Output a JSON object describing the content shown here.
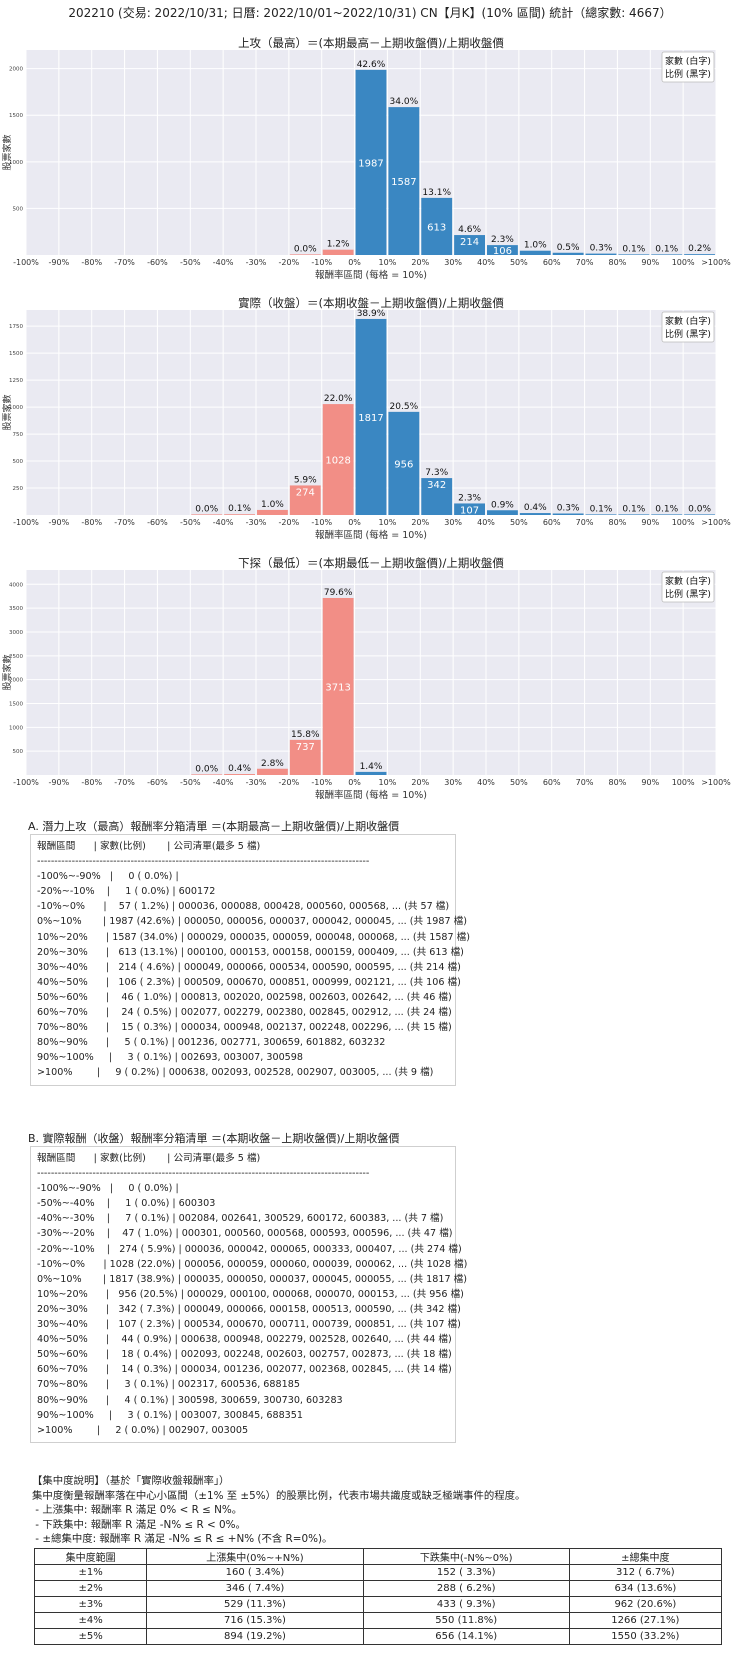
{
  "page_title": "202210 (交易: 2022/10/31; 日曆: 2022/10/01~2022/10/31) CN【月K】(10% 區間) 統計（總家數: 4667）",
  "chart_data": [
    {
      "type": "bar",
      "title": "上攻（最高）＝(本期最高－上期收盤價)/上期收盤價",
      "xlabel": "報酬率區間 (每格 = 10%)",
      "ylabel": "股票家數",
      "legend": [
        "家數 (白字)",
        "比例 (黑字)"
      ],
      "legend_position": "top-right",
      "grid": true,
      "ylim": [
        0,
        2200
      ],
      "yticks": [
        500,
        1000,
        1500,
        2000
      ],
      "xtick_labels": [
        "-100%",
        "-90%",
        "-80%",
        "-70%",
        "-60%",
        "-50%",
        "-40%",
        "-30%",
        "-20%",
        "-10%",
        "0%",
        "10%",
        "20%",
        "30%",
        "40%",
        "50%",
        "60%",
        "70%",
        "80%",
        "90%",
        "100%",
        ">100%"
      ],
      "bars": [
        {
          "bin": "-20%~-10%",
          "count": 1,
          "pct": "0.0%",
          "color": "#f28e86"
        },
        {
          "bin": "-10%~0%",
          "count": 57,
          "pct": "1.2%",
          "color": "#f28e86"
        },
        {
          "bin": "0%~10%",
          "count": 1987,
          "pct": "42.6%",
          "color": "#3a87c2"
        },
        {
          "bin": "10%~20%",
          "count": 1587,
          "pct": "34.0%",
          "color": "#3a87c2"
        },
        {
          "bin": "20%~30%",
          "count": 613,
          "pct": "13.1%",
          "color": "#3a87c2"
        },
        {
          "bin": "30%~40%",
          "count": 214,
          "pct": "4.6%",
          "color": "#3a87c2"
        },
        {
          "bin": "40%~50%",
          "count": 106,
          "pct": "2.3%",
          "color": "#3a87c2"
        },
        {
          "bin": "50%~60%",
          "count": 46,
          "pct": "1.0%",
          "color": "#3a87c2"
        },
        {
          "bin": "60%~70%",
          "count": 24,
          "pct": "0.5%",
          "color": "#3a87c2"
        },
        {
          "bin": "70%~80%",
          "count": 15,
          "pct": "0.3%",
          "color": "#3a87c2"
        },
        {
          "bin": "80%~90%",
          "count": 5,
          "pct": "0.1%",
          "color": "#3a87c2"
        },
        {
          "bin": "90%~100%",
          "count": 3,
          "pct": "0.1%",
          "color": "#3a87c2"
        },
        {
          "bin": ">100%",
          "count": 9,
          "pct": "0.2%",
          "color": "#3a87c2"
        }
      ]
    },
    {
      "type": "bar",
      "title": "實際（收盤）＝(本期收盤－上期收盤價)/上期收盤價",
      "xlabel": "報酬率區間 (每格 = 10%)",
      "ylabel": "股票家數",
      "legend": [
        "家數 (白字)",
        "比例 (黑字)"
      ],
      "legend_position": "top-right",
      "grid": true,
      "ylim": [
        0,
        1900
      ],
      "yticks": [
        250,
        500,
        750,
        1000,
        1250,
        1500,
        1750
      ],
      "xtick_labels": [
        "-100%",
        "-90%",
        "-80%",
        "-70%",
        "-60%",
        "-50%",
        "-40%",
        "-30%",
        "-20%",
        "-10%",
        "0%",
        "10%",
        "20%",
        "30%",
        "40%",
        "50%",
        "60%",
        "70%",
        "80%",
        "90%",
        "100%",
        ">100%"
      ],
      "bars": [
        {
          "bin": "-50%~-40%",
          "count": 1,
          "pct": "0.0%",
          "color": "#f28e86"
        },
        {
          "bin": "-40%~-30%",
          "count": 7,
          "pct": "0.1%",
          "color": "#f28e86"
        },
        {
          "bin": "-30%~-20%",
          "count": 47,
          "pct": "1.0%",
          "color": "#f28e86"
        },
        {
          "bin": "-20%~-10%",
          "count": 274,
          "pct": "5.9%",
          "color": "#f28e86"
        },
        {
          "bin": "-10%~0%",
          "count": 1028,
          "pct": "22.0%",
          "color": "#f28e86"
        },
        {
          "bin": "0%~10%",
          "count": 1817,
          "pct": "38.9%",
          "color": "#3a87c2"
        },
        {
          "bin": "10%~20%",
          "count": 956,
          "pct": "20.5%",
          "color": "#3a87c2"
        },
        {
          "bin": "20%~30%",
          "count": 342,
          "pct": "7.3%",
          "color": "#3a87c2"
        },
        {
          "bin": "30%~40%",
          "count": 107,
          "pct": "2.3%",
          "color": "#3a87c2"
        },
        {
          "bin": "40%~50%",
          "count": 44,
          "pct": "0.9%",
          "color": "#3a87c2"
        },
        {
          "bin": "50%~60%",
          "count": 18,
          "pct": "0.4%",
          "color": "#3a87c2"
        },
        {
          "bin": "60%~70%",
          "count": 14,
          "pct": "0.3%",
          "color": "#3a87c2"
        },
        {
          "bin": "70%~80%",
          "count": 3,
          "pct": "0.1%",
          "color": "#3a87c2"
        },
        {
          "bin": "80%~90%",
          "count": 4,
          "pct": "0.1%",
          "color": "#3a87c2"
        },
        {
          "bin": "90%~100%",
          "count": 3,
          "pct": "0.1%",
          "color": "#3a87c2"
        },
        {
          "bin": ">100%",
          "count": 2,
          "pct": "0.0%",
          "color": "#3a87c2"
        }
      ]
    },
    {
      "type": "bar",
      "title": "下探（最低）＝(本期最低－上期收盤價)/上期收盤價",
      "xlabel": "報酬率區間 (每格 = 10%)",
      "ylabel": "股票家數",
      "legend": [
        "家數 (白字)",
        "比例 (黑字)"
      ],
      "legend_position": "top-right",
      "grid": true,
      "ylim": [
        0,
        4300
      ],
      "yticks": [
        500,
        1000,
        1500,
        2000,
        2500,
        3000,
        3500,
        4000
      ],
      "xtick_labels": [
        "-100%",
        "-90%",
        "-80%",
        "-70%",
        "-60%",
        "-50%",
        "-40%",
        "-30%",
        "-20%",
        "-10%",
        "0%",
        "10%",
        "20%",
        "30%",
        "40%",
        "50%",
        "60%",
        "70%",
        "80%",
        "90%",
        "100%",
        ">100%"
      ],
      "bars": [
        {
          "bin": "-50%~-40%",
          "count": 1,
          "pct": "0.0%",
          "color": "#f28e86"
        },
        {
          "bin": "-40%~-30%",
          "count": 20,
          "pct": "0.4%",
          "color": "#f28e86"
        },
        {
          "bin": "-30%~-20%",
          "count": 131,
          "pct": "2.8%",
          "color": "#f28e86"
        },
        {
          "bin": "-20%~-10%",
          "count": 737,
          "pct": "15.8%",
          "color": "#f28e86"
        },
        {
          "bin": "-10%~0%",
          "count": 3713,
          "pct": "79.6%",
          "color": "#f28e86"
        },
        {
          "bin": "0%~10%",
          "count": 65,
          "pct": "1.4%",
          "color": "#3a87c2"
        }
      ]
    }
  ],
  "table_a": {
    "title": "A. 潛力上攻（最高）報酬率分箱清單 ＝(本期最高－上期收盤價)/上期收盤價",
    "lines": [
      "報酬區間      | 家數(比例)       | 公司清單(最多 5 檔)",
      "------------------------------------------------------------------------------------------------",
      "-100%~-90%   |     0 ( 0.0%) |",
      "-20%~-10%    |     1 ( 0.0%) | 600172",
      "-10%~0%      |    57 ( 1.2%) | 000036, 000088, 000428, 000560, 000568, ... (共 57 檔)",
      "0%~10%       | 1987 (42.6%) | 000050, 000056, 000037, 000042, 000045, ... (共 1987 檔)",
      "10%~20%      | 1587 (34.0%) | 000029, 000035, 000059, 000048, 000068, ... (共 1587 檔)",
      "20%~30%      |   613 (13.1%) | 000100, 000153, 000158, 000159, 000409, ... (共 613 檔)",
      "30%~40%      |   214 ( 4.6%) | 000049, 000066, 000534, 000590, 000595, ... (共 214 檔)",
      "40%~50%      |   106 ( 2.3%) | 000509, 000670, 000851, 000999, 002121, ... (共 106 檔)",
      "50%~60%      |    46 ( 1.0%) | 000813, 002020, 002598, 002603, 002642, ... (共 46 檔)",
      "60%~70%      |    24 ( 0.5%) | 002077, 002279, 002380, 002845, 002912, ... (共 24 檔)",
      "70%~80%      |    15 ( 0.3%) | 000034, 000948, 002137, 002248, 002296, ... (共 15 檔)",
      "80%~90%      |     5 ( 0.1%) | 001236, 002771, 300659, 601882, 603232",
      "90%~100%     |     3 ( 0.1%) | 002693, 003007, 300598",
      ">100%        |     9 ( 0.2%) | 000638, 002093, 002528, 002907, 003005, ... (共 9 檔)"
    ]
  },
  "table_b": {
    "title": "B. 實際報酬（收盤）報酬率分箱清單 ＝(本期收盤－上期收盤價)/上期收盤價",
    "lines": [
      "報酬區間      | 家數(比例)       | 公司清單(最多 5 檔)",
      "------------------------------------------------------------------------------------------------",
      "-100%~-90%   |     0 ( 0.0%) |",
      "-50%~-40%    |     1 ( 0.0%) | 600303",
      "-40%~-30%    |     7 ( 0.1%) | 002084, 002641, 300529, 600172, 600383, ... (共 7 檔)",
      "-30%~-20%    |    47 ( 1.0%) | 000301, 000560, 000568, 000593, 000596, ... (共 47 檔)",
      "-20%~-10%    |   274 ( 5.9%) | 000036, 000042, 000065, 000333, 000407, ... (共 274 檔)",
      "-10%~0%      | 1028 (22.0%) | 000056, 000059, 000060, 000039, 000062, ... (共 1028 檔)",
      "0%~10%       | 1817 (38.9%) | 000035, 000050, 000037, 000045, 000055, ... (共 1817 檔)",
      "10%~20%      |   956 (20.5%) | 000029, 000100, 000068, 000070, 000153, ... (共 956 檔)",
      "20%~30%      |   342 ( 7.3%) | 000049, 000066, 000158, 000513, 000590, ... (共 342 檔)",
      "30%~40%      |   107 ( 2.3%) | 000534, 000670, 000711, 000739, 000851, ... (共 107 檔)",
      "40%~50%      |    44 ( 0.9%) | 000638, 000948, 002279, 002528, 002640, ... (共 44 檔)",
      "50%~60%      |    18 ( 0.4%) | 002093, 002248, 002603, 002757, 002873, ... (共 18 檔)",
      "60%~70%      |    14 ( 0.3%) | 000034, 001236, 002077, 002368, 002845, ... (共 14 檔)",
      "70%~80%      |     3 ( 0.1%) | 002317, 600536, 688185",
      "80%~90%      |     4 ( 0.1%) | 300598, 300659, 300730, 603283",
      "90%~100%     |     3 ( 0.1%) | 003007, 300845, 688351",
      ">100%        |     2 ( 0.0%) | 002907, 003005"
    ]
  },
  "concentration": {
    "lines": [
      "【集中度說明】（基於「實際收盤報酬率」）",
      "集中度衡量報酬率落在中心小區間（±1% 至 ±5%）的股票比例，代表市場共識度或缺乏極端事件的程度。",
      " - 上漲集中: 報酬率 R 滿足 0% < R ≤ N%。",
      " - 下跌集中: 報酬率 R 滿足 -N% ≤ R < 0%。",
      " - ±總集中度: 報酬率 R 滿足 -N% ≤ R ≤ +N% (不含 R=0%)。"
    ],
    "headers": [
      "集中度範圍",
      "上漲集中(0%~+N%)",
      "下跌集中(-N%~0%)",
      "±總集中度"
    ],
    "rows": [
      [
        "±1%",
        "160 ( 3.4%)",
        "152 ( 3.3%)",
        "312 ( 6.7%)"
      ],
      [
        "±2%",
        "346 ( 7.4%)",
        "288 ( 6.2%)",
        "634 (13.6%)"
      ],
      [
        "±3%",
        "529 (11.3%)",
        "433 ( 9.3%)",
        "962 (20.6%)"
      ],
      [
        "±4%",
        "716 (15.3%)",
        "550 (11.8%)",
        "1266 (27.1%)"
      ],
      [
        "±5%",
        "894 (19.2%)",
        "656 (14.1%)",
        "1550 (33.2%)"
      ]
    ]
  }
}
